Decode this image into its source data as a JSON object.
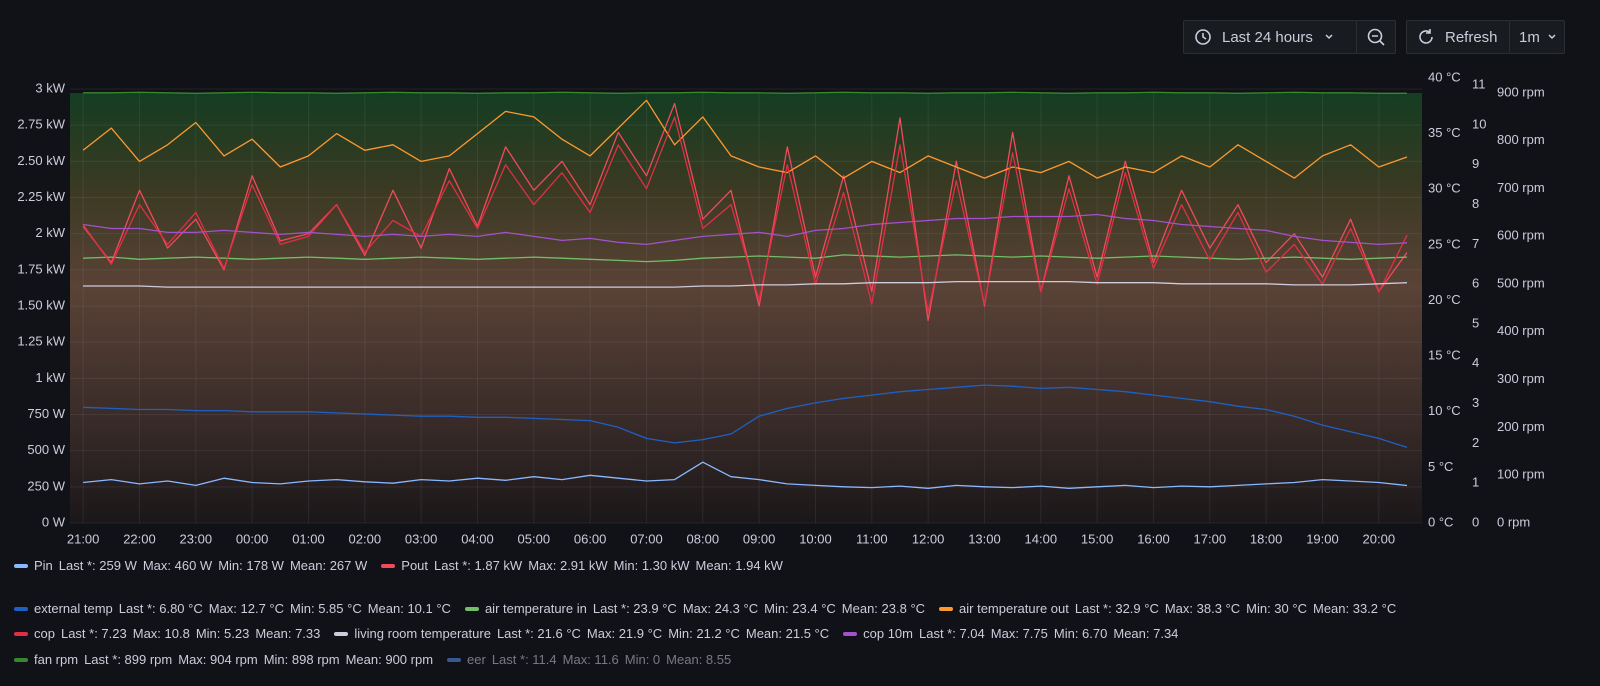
{
  "toolbar": {
    "time_range": "Last 24 hours",
    "refresh": "Refresh",
    "interval": "1m"
  },
  "chart_data": {
    "type": "line",
    "x": [
      "21:00",
      "21:30",
      "22:00",
      "22:30",
      "23:00",
      "23:30",
      "00:00",
      "00:30",
      "01:00",
      "01:30",
      "02:00",
      "02:30",
      "03:00",
      "03:30",
      "04:00",
      "04:30",
      "05:00",
      "05:30",
      "06:00",
      "06:30",
      "07:00",
      "07:30",
      "08:00",
      "08:30",
      "09:00",
      "09:30",
      "10:00",
      "10:30",
      "11:00",
      "11:30",
      "12:00",
      "12:30",
      "13:00",
      "13:30",
      "14:00",
      "14:30",
      "15:00",
      "15:30",
      "16:00",
      "16:30",
      "17:00",
      "17:30",
      "18:00",
      "18:30",
      "19:00",
      "19:30",
      "20:00",
      "20:30"
    ],
    "xlim": [
      "20:46",
      "20:46"
    ],
    "xticks": [
      "21:00",
      "22:00",
      "23:00",
      "00:00",
      "01:00",
      "02:00",
      "03:00",
      "04:00",
      "05:00",
      "06:00",
      "07:00",
      "08:00",
      "09:00",
      "10:00",
      "11:00",
      "12:00",
      "13:00",
      "14:00",
      "15:00",
      "16:00",
      "17:00",
      "18:00",
      "19:00",
      "20:00"
    ],
    "ylim": [
      0,
      3076
    ],
    "yticks": [
      {
        "value": 0,
        "label": "0 W"
      },
      {
        "value": 250,
        "label": "250 W"
      },
      {
        "value": 500,
        "label": "500 W"
      },
      {
        "value": 750,
        "label": "750 W"
      },
      {
        "value": 1000,
        "label": "1 kW"
      },
      {
        "value": 1250,
        "label": "1.25 kW"
      },
      {
        "value": 1500,
        "label": "1.50 kW"
      },
      {
        "value": 1750,
        "label": "1.75 kW"
      },
      {
        "value": 2000,
        "label": "2 kW"
      },
      {
        "value": 2250,
        "label": "2.25 kW"
      },
      {
        "value": 2500,
        "label": "2.50 kW"
      },
      {
        "value": 2750,
        "label": "2.75 kW"
      },
      {
        "value": 3000,
        "label": "3 kW"
      }
    ],
    "y2lim": [
      0,
      40
    ],
    "y2ticks": [
      {
        "value": 0,
        "label": "0 °C"
      },
      {
        "value": 5,
        "label": "5 °C"
      },
      {
        "value": 10,
        "label": "10 °C"
      },
      {
        "value": 15,
        "label": "15 °C"
      },
      {
        "value": 20,
        "label": "20 °C"
      },
      {
        "value": 25,
        "label": "25 °C"
      },
      {
        "value": 30,
        "label": "30 °C"
      },
      {
        "value": 35,
        "label": "35 °C"
      },
      {
        "value": 40,
        "label": "40 °C"
      }
    ],
    "y3lim": [
      0,
      11.18
    ],
    "y3ticks": [
      0,
      1,
      2,
      3,
      4,
      5,
      6,
      7,
      8,
      9,
      10,
      11
    ],
    "y4lim": [
      0,
      931
    ],
    "y4ticks": [
      {
        "value": 0,
        "label": "0 rpm"
      },
      {
        "value": 100,
        "label": "100 rpm"
      },
      {
        "value": 200,
        "label": "200 rpm"
      },
      {
        "value": 300,
        "label": "300 rpm"
      },
      {
        "value": 400,
        "label": "400 rpm"
      },
      {
        "value": 500,
        "label": "500 rpm"
      },
      {
        "value": 600,
        "label": "600 rpm"
      },
      {
        "value": 700,
        "label": "700 rpm"
      },
      {
        "value": 800,
        "label": "800 rpm"
      },
      {
        "value": 900,
        "label": "900 rpm"
      }
    ],
    "grid": true,
    "series": [
      {
        "name": "Pin",
        "color": "#8ab8ff",
        "axis": "y",
        "legend_stats": [
          "Last *: 259 W",
          "Max: 460 W",
          "Min: 178 W",
          "Mean: 267 W"
        ],
        "values": [
          280,
          300,
          270,
          290,
          260,
          310,
          280,
          270,
          290,
          300,
          285,
          275,
          300,
          290,
          310,
          295,
          320,
          300,
          330,
          310,
          290,
          300,
          420,
          320,
          300,
          270,
          260,
          250,
          245,
          255,
          240,
          260,
          250,
          245,
          255,
          240,
          250,
          260,
          245,
          255,
          250,
          260,
          270,
          280,
          300,
          290,
          280,
          259
        ]
      },
      {
        "name": "Pout",
        "color": "#f2495c",
        "axis": "y",
        "legend_stats": [
          "Last *: 1.87 kW",
          "Max: 2.91 kW",
          "Min: 1.30 kW",
          "Mean: 1.94 kW"
        ],
        "values": [
          2050,
          1800,
          2300,
          1900,
          2100,
          1750,
          2400,
          1950,
          2000,
          2200,
          1850,
          2300,
          1900,
          2450,
          2050,
          2600,
          2300,
          2500,
          2200,
          2700,
          2400,
          2900,
          2100,
          2300,
          1500,
          2600,
          1700,
          2400,
          1600,
          2800,
          1400,
          2500,
          1500,
          2700,
          1600,
          2400,
          1700,
          2500,
          1800,
          2300,
          1900,
          2200,
          1800,
          2000,
          1700,
          2100,
          1600,
          1870
        ]
      },
      {
        "name": "external temp",
        "color": "#1f60c4",
        "axis": "y2",
        "legend_stats": [
          "Last *: 6.80 °C",
          "Max: 12.7 °C",
          "Min: 5.85 °C",
          "Mean: 10.1 °C"
        ],
        "values": [
          10.4,
          10.3,
          10.2,
          10.2,
          10.1,
          10.1,
          10.0,
          10.0,
          10.0,
          9.9,
          9.8,
          9.7,
          9.6,
          9.6,
          9.5,
          9.5,
          9.4,
          9.3,
          9.2,
          8.6,
          7.6,
          7.2,
          7.5,
          8.0,
          9.6,
          10.3,
          10.8,
          11.2,
          11.5,
          11.8,
          12.0,
          12.2,
          12.4,
          12.3,
          12.1,
          12.2,
          12.0,
          11.8,
          11.5,
          11.2,
          10.9,
          10.5,
          10.2,
          9.6,
          8.8,
          8.2,
          7.6,
          6.8
        ]
      },
      {
        "name": "air temperature in",
        "color": "#73bf69",
        "axis": "y2",
        "legend_stats": [
          "Last *: 23.9 °C",
          "Max: 24.3 °C",
          "Min: 23.4 °C",
          "Mean: 23.8 °C"
        ],
        "values": [
          23.8,
          23.9,
          23.7,
          23.8,
          23.9,
          23.8,
          23.7,
          23.8,
          23.9,
          23.8,
          23.7,
          23.8,
          23.9,
          23.8,
          23.7,
          23.8,
          23.9,
          23.8,
          23.7,
          23.6,
          23.5,
          23.6,
          23.8,
          23.9,
          24.0,
          23.9,
          23.8,
          24.1,
          24.0,
          23.9,
          24.0,
          24.1,
          24.0,
          23.9,
          24.0,
          23.9,
          23.8,
          23.9,
          24.0,
          23.9,
          23.8,
          23.7,
          23.8,
          23.9,
          23.8,
          23.7,
          23.8,
          23.9
        ]
      },
      {
        "name": "air temperature out",
        "color": "#ff9830",
        "axis": "y2",
        "legend_stats": [
          "Last *: 32.9 °C",
          "Max: 38.3 °C",
          "Min: 30 °C",
          "Mean: 33.2 °C"
        ],
        "values": [
          33.5,
          35.5,
          32.5,
          34,
          36,
          33,
          34.5,
          32,
          33,
          35,
          33.5,
          34,
          32.5,
          33,
          35,
          37,
          36.5,
          34.5,
          33,
          35.5,
          38,
          34,
          36.5,
          33,
          32,
          31.5,
          33,
          31,
          32.5,
          31.5,
          33,
          32,
          31,
          32,
          31.5,
          32.5,
          31,
          32,
          31.5,
          33,
          32,
          34,
          32.5,
          31,
          33,
          34,
          32,
          32.9
        ]
      },
      {
        "name": "cop",
        "color": "#e02f44",
        "axis": "y3",
        "legend_stats": [
          "Last *: 7.23",
          "Max: 10.8",
          "Min: 5.23",
          "Mean: 7.33"
        ],
        "values": [
          7.5,
          6.5,
          8,
          7,
          7.8,
          6.4,
          8.5,
          7,
          7.2,
          8,
          6.8,
          7.6,
          7.2,
          8.6,
          7.4,
          9,
          8,
          8.8,
          7.8,
          9.5,
          8.4,
          10.2,
          7.4,
          8,
          5.6,
          9,
          6,
          8.3,
          5.5,
          9.5,
          5.3,
          8.6,
          5.5,
          9.3,
          5.8,
          8.4,
          6,
          8.8,
          6.4,
          8,
          6.6,
          7.8,
          6.3,
          7,
          6,
          7.4,
          5.8,
          7.23
        ]
      },
      {
        "name": "living room temperature",
        "color": "#ccccdc",
        "axis": "y2",
        "legend_stats": [
          "Last *: 21.6 °C",
          "Max: 21.9 °C",
          "Min: 21.2 °C",
          "Mean: 21.5 °C"
        ],
        "values": [
          21.3,
          21.3,
          21.3,
          21.2,
          21.2,
          21.2,
          21.2,
          21.2,
          21.2,
          21.2,
          21.2,
          21.2,
          21.2,
          21.2,
          21.2,
          21.2,
          21.2,
          21.2,
          21.2,
          21.2,
          21.2,
          21.2,
          21.3,
          21.3,
          21.4,
          21.4,
          21.5,
          21.5,
          21.6,
          21.6,
          21.6,
          21.7,
          21.7,
          21.7,
          21.7,
          21.7,
          21.6,
          21.6,
          21.6,
          21.5,
          21.5,
          21.5,
          21.5,
          21.4,
          21.4,
          21.4,
          21.5,
          21.6
        ]
      },
      {
        "name": "cop 10m",
        "color": "#a352cc",
        "axis": "y3",
        "legend_stats": [
          "Last *: 7.04",
          "Max: 7.75",
          "Min: 6.70",
          "Mean: 7.34"
        ],
        "values": [
          7.5,
          7.4,
          7.4,
          7.3,
          7.3,
          7.35,
          7.3,
          7.25,
          7.3,
          7.25,
          7.2,
          7.25,
          7.2,
          7.25,
          7.2,
          7.3,
          7.2,
          7.1,
          7.15,
          7.05,
          7.0,
          7.1,
          7.2,
          7.25,
          7.3,
          7.2,
          7.35,
          7.4,
          7.5,
          7.55,
          7.6,
          7.65,
          7.65,
          7.7,
          7.7,
          7.7,
          7.75,
          7.65,
          7.6,
          7.5,
          7.45,
          7.4,
          7.35,
          7.2,
          7.1,
          7.05,
          7.0,
          7.04
        ]
      },
      {
        "name": "fan rpm",
        "color": "#37872d",
        "axis": "y4",
        "legend_stats": [
          "Last *: 899 rpm",
          "Max: 904 rpm",
          "Min: 898 rpm",
          "Mean: 900 rpm"
        ],
        "values": [
          900,
          900,
          901,
          900,
          899,
          900,
          901,
          900,
          900,
          899,
          900,
          901,
          900,
          900,
          899,
          900,
          900,
          901,
          900,
          899,
          900,
          900,
          901,
          900,
          900,
          899,
          900,
          901,
          900,
          900,
          899,
          900,
          900,
          901,
          900,
          899,
          900,
          900,
          901,
          900,
          900,
          899,
          900,
          901,
          900,
          900,
          899,
          899
        ]
      },
      {
        "name": "eer",
        "color": "#5794f2",
        "hidden": true,
        "legend_stats": [
          "Last *: 11.4",
          "Max: 11.6",
          "Min: 0",
          "Mean: 8.55"
        ]
      }
    ]
  }
}
